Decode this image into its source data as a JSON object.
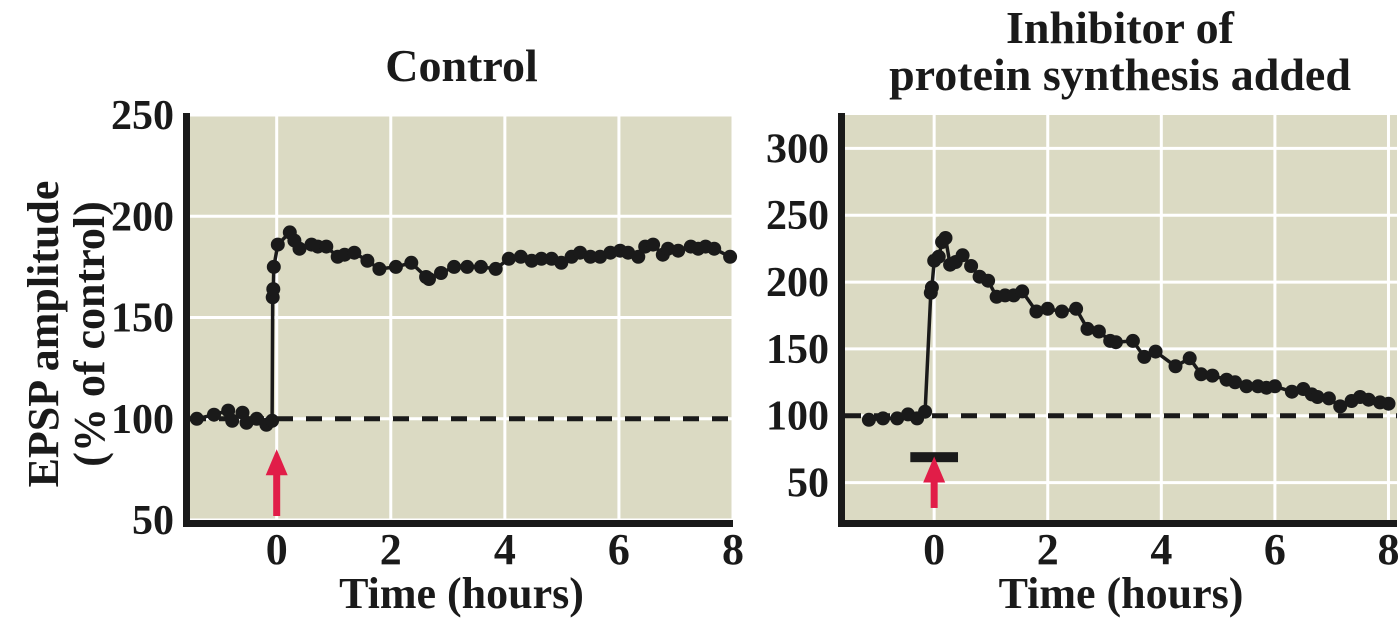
{
  "figure": {
    "ylabel_line1": "EPSP amplitude",
    "ylabel_line2": "(% of control)"
  },
  "colors": {
    "background": "#FFFFFF",
    "plot_background": "#DBDAC3",
    "grid": "#FFFFFF",
    "data": "#1A1A1A",
    "arrow": "#E11D48"
  },
  "chart_data": [
    {
      "type": "scatter",
      "title": "Control",
      "xlabel": "Time (hours)",
      "ylabel": "EPSP amplitude (% of control)",
      "xlim": [
        -1.52,
        8.0
      ],
      "ylim": [
        50,
        250
      ],
      "xticks": [
        0,
        2,
        4,
        6,
        8
      ],
      "yticks": [
        50,
        100,
        150,
        200,
        250
      ],
      "grid": true,
      "marker_radius": 7,
      "series": [
        {
          "name": "EPSP amplitude",
          "points": [
            [
              -1.4,
              100
            ],
            [
              -1.1,
              102
            ],
            [
              -0.85,
              104
            ],
            [
              -0.78,
              99
            ],
            [
              -0.6,
              103
            ],
            [
              -0.53,
              98
            ],
            [
              -0.35,
              100
            ],
            [
              -0.18,
              97
            ],
            [
              -0.08,
              99
            ],
            [
              -0.07,
              160
            ],
            [
              -0.06,
              164
            ],
            [
              -0.05,
              175
            ],
            [
              0.02,
              186
            ],
            [
              0.23,
              192
            ],
            [
              0.31,
              188
            ],
            [
              0.4,
              184
            ],
            [
              0.61,
              186
            ],
            [
              0.72,
              185
            ],
            [
              0.87,
              185
            ],
            [
              1.07,
              180
            ],
            [
              1.19,
              181
            ],
            [
              1.36,
              182
            ],
            [
              1.59,
              178
            ],
            [
              1.8,
              174
            ],
            [
              2.09,
              175
            ],
            [
              2.36,
              177
            ],
            [
              2.62,
              170
            ],
            [
              2.67,
              169
            ],
            [
              2.88,
              172
            ],
            [
              3.11,
              175
            ],
            [
              3.34,
              175
            ],
            [
              3.58,
              175
            ],
            [
              3.84,
              174
            ],
            [
              4.07,
              179
            ],
            [
              4.28,
              180
            ],
            [
              4.47,
              178
            ],
            [
              4.64,
              179
            ],
            [
              4.82,
              179
            ],
            [
              4.99,
              177
            ],
            [
              5.17,
              180
            ],
            [
              5.32,
              182
            ],
            [
              5.5,
              180
            ],
            [
              5.67,
              180
            ],
            [
              5.85,
              182
            ],
            [
              6.02,
              183
            ],
            [
              6.16,
              182
            ],
            [
              6.34,
              180
            ],
            [
              6.46,
              185
            ],
            [
              6.6,
              186
            ],
            [
              6.77,
              181
            ],
            [
              6.86,
              184
            ],
            [
              7.04,
              183
            ],
            [
              7.26,
              185
            ],
            [
              7.39,
              184
            ],
            [
              7.52,
              185
            ],
            [
              7.67,
              184
            ],
            [
              7.95,
              180
            ]
          ]
        }
      ],
      "annotations": {
        "baseline": {
          "type": "hline",
          "y": 100,
          "style": "dashed"
        },
        "stimulus_arrow": {
          "type": "arrow",
          "x": 0,
          "y_from": 52,
          "y_to": 80
        }
      }
    },
    {
      "type": "scatter",
      "title": "Inhibitor of protein synthesis added",
      "title_lines": [
        "Inhibitor of",
        "protein synthesis added"
      ],
      "xlabel": "Time (hours)",
      "ylabel": "EPSP amplitude (% of control)",
      "xlim": [
        -1.57,
        8.15
      ],
      "ylim": [
        22,
        325
      ],
      "xticks": [
        0,
        2,
        4,
        6,
        8
      ],
      "yticks": [
        50,
        100,
        150,
        200,
        250,
        300
      ],
      "grid": true,
      "marker_radius": 7,
      "series": [
        {
          "name": "EPSP amplitude",
          "points": [
            [
              -1.15,
              97
            ],
            [
              -0.9,
              98
            ],
            [
              -0.65,
              98
            ],
            [
              -0.46,
              101
            ],
            [
              -0.3,
              98
            ],
            [
              -0.16,
              103
            ],
            [
              -0.06,
              192
            ],
            [
              -0.04,
              196
            ],
            [
              0.0,
              216
            ],
            [
              0.08,
              219
            ],
            [
              0.14,
              230
            ],
            [
              0.2,
              233
            ],
            [
              0.28,
              213
            ],
            [
              0.38,
              215
            ],
            [
              0.5,
              220
            ],
            [
              0.65,
              212
            ],
            [
              0.8,
              204
            ],
            [
              0.95,
              201
            ],
            [
              1.1,
              189
            ],
            [
              1.25,
              190
            ],
            [
              1.4,
              190
            ],
            [
              1.55,
              193
            ],
            [
              1.8,
              178
            ],
            [
              2.0,
              180
            ],
            [
              2.25,
              178
            ],
            [
              2.5,
              180
            ],
            [
              2.7,
              165
            ],
            [
              2.9,
              163
            ],
            [
              3.1,
              156
            ],
            [
              3.2,
              155
            ],
            [
              3.5,
              156
            ],
            [
              3.7,
              144
            ],
            [
              3.9,
              148
            ],
            [
              4.25,
              137
            ],
            [
              4.5,
              143
            ],
            [
              4.7,
              131
            ],
            [
              4.9,
              130
            ],
            [
              5.15,
              127
            ],
            [
              5.3,
              125
            ],
            [
              5.5,
              122
            ],
            [
              5.7,
              122
            ],
            [
              5.85,
              121
            ],
            [
              6.0,
              122
            ],
            [
              6.3,
              118
            ],
            [
              6.5,
              120
            ],
            [
              6.65,
              116
            ],
            [
              6.75,
              114
            ],
            [
              6.95,
              113
            ],
            [
              7.15,
              107
            ],
            [
              7.35,
              111
            ],
            [
              7.5,
              114
            ],
            [
              7.65,
              112
            ],
            [
              7.85,
              110
            ],
            [
              8.0,
              109
            ]
          ]
        }
      ],
      "annotations": {
        "baseline": {
          "type": "hline",
          "y": 100,
          "style": "dashed"
        },
        "inhibitor_bar": {
          "type": "bar",
          "x0": -0.42,
          "x1": 0.42,
          "y": 69,
          "height": 8
        },
        "stimulus_arrow": {
          "type": "arrow",
          "x": 0,
          "y_from": 31,
          "y_to": 62
        }
      }
    }
  ]
}
